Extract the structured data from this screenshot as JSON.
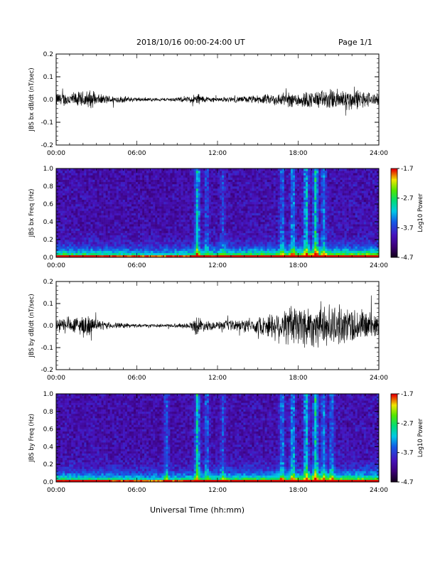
{
  "header": {
    "title": "2018/10/16  00:00-24:00 UT",
    "page": "Page 1/1"
  },
  "xlabel": "Universal Time (hh:mm)",
  "chart_data": [
    {
      "type": "line",
      "ylabel": "JBS bx dB/dt (nT/sec)",
      "xlim": [
        0,
        24
      ],
      "ylim": [
        -0.2,
        0.2
      ],
      "xticks": [
        "00:00",
        "06:00",
        "12:00",
        "18:00",
        "24:00"
      ],
      "yticks": [
        "-0.2",
        "-0.1",
        "0.0",
        "0.1",
        "0.2"
      ],
      "series": [
        {
          "x": [
            0,
            1,
            2,
            2.5,
            3,
            4,
            5,
            6,
            7,
            8,
            9,
            10,
            10.5,
            11,
            12,
            13,
            14,
            15,
            16,
            17,
            18,
            19,
            20,
            21,
            22,
            23,
            24
          ],
          "amp": [
            0.025,
            0.025,
            0.03,
            0.035,
            0.02,
            0.015,
            0.012,
            0.008,
            0.006,
            0.006,
            0.008,
            0.012,
            0.025,
            0.012,
            0.008,
            0.01,
            0.012,
            0.015,
            0.02,
            0.025,
            0.03,
            0.03,
            0.035,
            0.04,
            0.04,
            0.03,
            0.02
          ]
        }
      ]
    },
    {
      "type": "heatmap",
      "ylabel": "JBS bx Freq (Hz)",
      "xlim": [
        0,
        24
      ],
      "ylim": [
        0,
        1
      ],
      "xticks": [
        "00:00",
        "06:00",
        "12:00",
        "18:00",
        "24:00"
      ],
      "yticks": [
        "0.0",
        "0.2",
        "0.4",
        "0.6",
        "0.8",
        "1.0"
      ],
      "colorbar": {
        "ticks": [
          "-1.7",
          "-2.7",
          "-3.7",
          "-4.7"
        ],
        "label": "Log10 Power",
        "range": [
          -4.7,
          -1.7
        ]
      },
      "bursts": [
        [
          10.5,
          0.9
        ],
        [
          11.2,
          0.4
        ],
        [
          12.4,
          0.35
        ],
        [
          16.8,
          0.5
        ],
        [
          17.6,
          0.65
        ],
        [
          18.6,
          0.8
        ],
        [
          19.3,
          0.95
        ],
        [
          19.9,
          0.55
        ]
      ]
    },
    {
      "type": "line",
      "ylabel": "JBS by dB/dt (nT/sec)",
      "xlim": [
        0,
        24
      ],
      "ylim": [
        -0.2,
        0.2
      ],
      "xticks": [
        "00:00",
        "06:00",
        "12:00",
        "18:00",
        "24:00"
      ],
      "yticks": [
        "-0.2",
        "-0.1",
        "0.0",
        "0.1",
        "0.2"
      ],
      "series": [
        {
          "x": [
            0,
            1,
            2,
            2.5,
            3,
            4,
            5,
            6,
            7,
            8,
            9,
            10,
            10.5,
            11,
            12,
            13,
            14,
            15,
            16,
            17,
            18,
            19,
            20,
            21,
            22,
            23,
            24
          ],
          "amp": [
            0.03,
            0.03,
            0.04,
            0.04,
            0.02,
            0.012,
            0.01,
            0.006,
            0.005,
            0.006,
            0.008,
            0.012,
            0.04,
            0.02,
            0.015,
            0.02,
            0.025,
            0.03,
            0.05,
            0.07,
            0.09,
            0.08,
            0.08,
            0.07,
            0.07,
            0.06,
            0.04
          ]
        }
      ]
    },
    {
      "type": "heatmap",
      "ylabel": "JBS by Freq (Hz)",
      "xlim": [
        0,
        24
      ],
      "ylim": [
        0,
        1
      ],
      "xticks": [
        "00:00",
        "06:00",
        "12:00",
        "18:00",
        "24:00"
      ],
      "yticks": [
        "0.0",
        "0.2",
        "0.4",
        "0.6",
        "0.8",
        "1.0"
      ],
      "colorbar": {
        "ticks": [
          "-1.7",
          "-2.7",
          "-3.7",
          "-4.7"
        ],
        "label": "Log10 Power",
        "range": [
          -4.7,
          -1.7
        ]
      },
      "bursts": [
        [
          8.2,
          0.5
        ],
        [
          10.5,
          0.95
        ],
        [
          11.2,
          0.5
        ],
        [
          12.4,
          0.4
        ],
        [
          16.8,
          0.55
        ],
        [
          17.6,
          0.7
        ],
        [
          18.6,
          0.85
        ],
        [
          19.3,
          0.95
        ],
        [
          19.9,
          0.6
        ],
        [
          20.5,
          0.5
        ]
      ]
    }
  ]
}
